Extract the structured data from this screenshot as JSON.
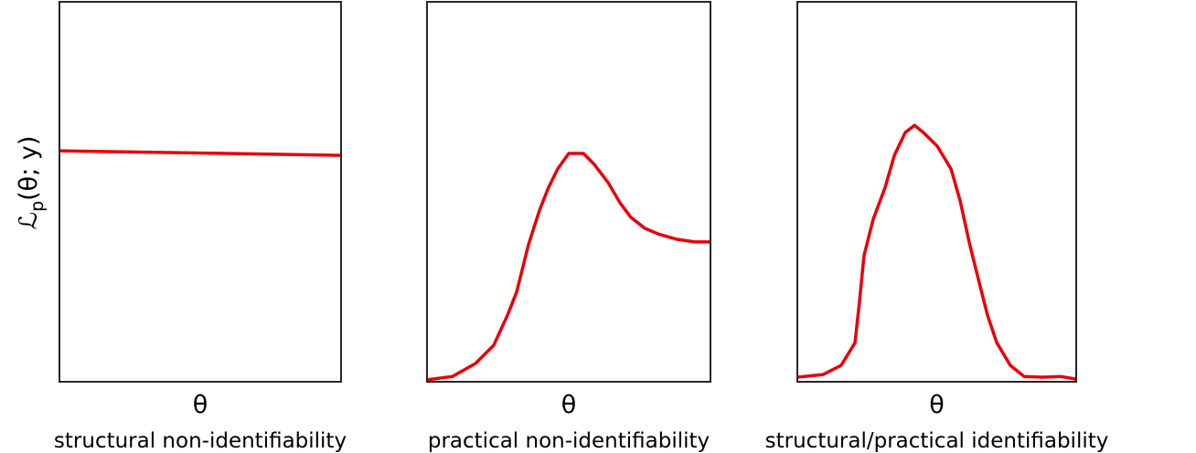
{
  "chart_data": [
    {
      "type": "line",
      "color": "#e8000b",
      "xlim": [
        0,
        1
      ],
      "ylim": [
        0,
        1
      ],
      "ylabel": [
        "ℒ",
        "p",
        "(θ; y)"
      ],
      "xlabel": "θ",
      "caption": "structural non-identifiability",
      "x": [
        0,
        1
      ],
      "values": [
        0.608,
        0.596
      ]
    },
    {
      "type": "line",
      "color": "#e8000b",
      "xlim": [
        0,
        1
      ],
      "ylim": [
        0,
        1
      ],
      "xlabel": "θ",
      "caption": "practical non-identifiability",
      "x": [
        0,
        0.09,
        0.171,
        0.235,
        0.284,
        0.316,
        0.358,
        0.397,
        0.429,
        0.461,
        0.5,
        0.552,
        0.59,
        0.639,
        0.681,
        0.719,
        0.768,
        0.816,
        0.881,
        0.945,
        1.0
      ],
      "values": [
        0.005,
        0.014,
        0.048,
        0.096,
        0.175,
        0.236,
        0.361,
        0.452,
        0.512,
        0.56,
        0.601,
        0.601,
        0.572,
        0.524,
        0.471,
        0.433,
        0.404,
        0.389,
        0.375,
        0.368,
        0.368
      ]
    },
    {
      "type": "line",
      "color": "#e8000b",
      "xlim": [
        0,
        1
      ],
      "ylim": [
        0,
        1
      ],
      "xlabel": "θ",
      "caption": "structural/practical identifiability",
      "x": [
        0,
        0.092,
        0.157,
        0.207,
        0.223,
        0.239,
        0.272,
        0.315,
        0.348,
        0.387,
        0.42,
        0.452,
        0.502,
        0.551,
        0.584,
        0.616,
        0.649,
        0.682,
        0.715,
        0.764,
        0.813,
        0.879,
        0.944,
        1.0
      ],
      "values": [
        0.012,
        0.019,
        0.043,
        0.103,
        0.212,
        0.332,
        0.428,
        0.512,
        0.596,
        0.656,
        0.675,
        0.656,
        0.62,
        0.56,
        0.476,
        0.368,
        0.271,
        0.175,
        0.103,
        0.043,
        0.014,
        0.012,
        0.014,
        0.007
      ]
    }
  ]
}
